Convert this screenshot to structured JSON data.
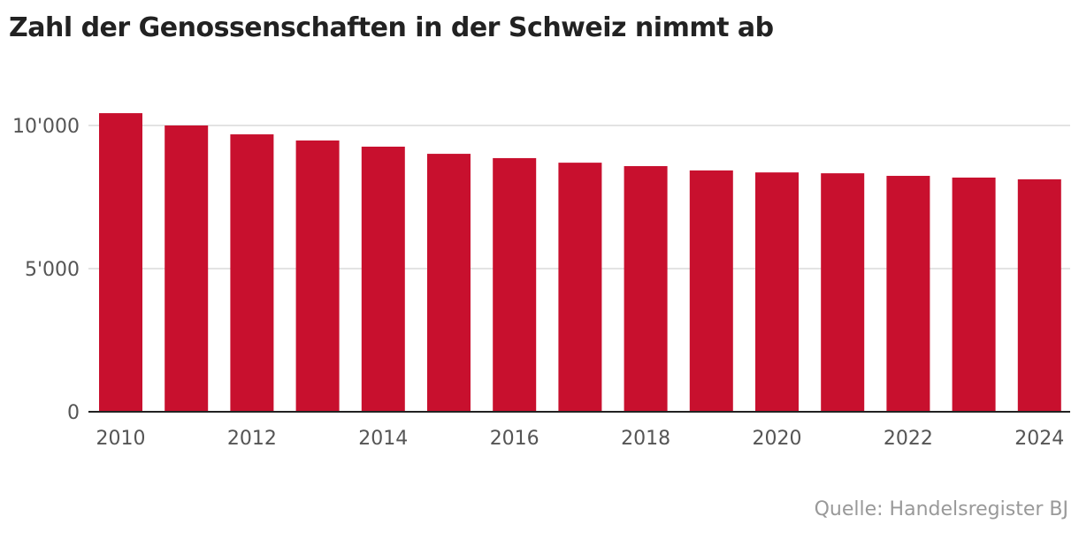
{
  "title": "Zahl der Genossenschaften in der Schweiz nimmt ab",
  "source": "Quelle: Handelsregister BJ",
  "chart_data": {
    "type": "bar",
    "title": "Zahl der Genossenschaften in der Schweiz nimmt ab",
    "categories": [
      "2010",
      "2011",
      "2012",
      "2013",
      "2014",
      "2015",
      "2016",
      "2017",
      "2018",
      "2019",
      "2020",
      "2021",
      "2022",
      "2023",
      "2024"
    ],
    "values": [
      10430,
      10000,
      9690,
      9475,
      9260,
      9010,
      8860,
      8700,
      8580,
      8430,
      8360,
      8330,
      8240,
      8180,
      8120
    ],
    "x_tick_labels": [
      "2010",
      "2012",
      "2014",
      "2016",
      "2018",
      "2020",
      "2022",
      "2024"
    ],
    "y_ticks": [
      0,
      5000,
      10000
    ],
    "y_tick_labels": [
      "0",
      "5'000",
      "10'000"
    ],
    "ylim": [
      0,
      10600
    ],
    "grid": true,
    "bar_color": "#c8102e",
    "xlabel": "",
    "ylabel": ""
  }
}
